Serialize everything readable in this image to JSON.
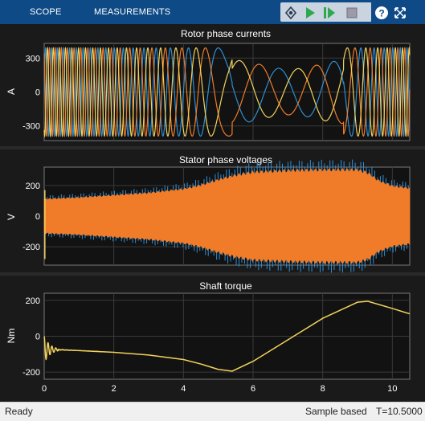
{
  "toolstrip": {
    "tabs": [
      {
        "label": "SCOPE"
      },
      {
        "label": "MEASUREMENTS"
      }
    ],
    "icons": [
      "highlight-simulink-block-icon",
      "run-icon",
      "step-forward-icon",
      "stop-icon",
      "help-icon",
      "expand-icon"
    ]
  },
  "colors": {
    "toolstrip_bg": "#0e4a86",
    "axes_bg": "#121212",
    "trace_blue": "#2e8fd6",
    "trace_orange": "#f07c2a",
    "trace_yellow": "#f2d35c"
  },
  "chart_data": [
    {
      "type": "line",
      "title": "Rotor phase currents",
      "ylabel": "A",
      "ylim": [
        -430,
        430
      ],
      "xlim": [
        0,
        10.5
      ],
      "yticks": [
        300,
        0,
        -300
      ],
      "ytick_labels": [
        "300",
        "0",
        "-300"
      ],
      "amplitude": 390,
      "grid": true,
      "series": [
        {
          "color": "blue"
        },
        {
          "color": "orange"
        },
        {
          "color": "yellow"
        }
      ]
    },
    {
      "type": "area",
      "title": "Stator phase voltages",
      "ylabel": "V",
      "ylim": [
        -320,
        320
      ],
      "xlim": [
        0,
        10.5
      ],
      "yticks": [
        200,
        0,
        -200
      ],
      "ytick_labels": [
        "200",
        "0",
        "-200"
      ],
      "envelope_x": [
        0,
        0.5,
        1,
        2,
        3,
        4,
        4.5,
        5,
        5.5,
        6,
        7,
        8,
        9,
        9.3,
        9.6,
        10,
        10.5
      ],
      "envelope_y": [
        110,
        115,
        120,
        135,
        150,
        175,
        200,
        235,
        265,
        285,
        295,
        300,
        300,
        280,
        230,
        195,
        180
      ],
      "grid": true,
      "series": [
        {
          "color": "blue"
        },
        {
          "color": "orange"
        },
        {
          "color": "yellow"
        }
      ]
    },
    {
      "type": "line",
      "title": "Shaft torque",
      "ylabel": "Nm",
      "ylim": [
        -240,
        240
      ],
      "xlim": [
        0,
        10.5
      ],
      "yticks": [
        200,
        0,
        -200
      ],
      "ytick_labels": [
        "200",
        "0",
        "-200"
      ],
      "xticks": [
        0,
        2,
        4,
        6,
        8,
        10
      ],
      "xtick_labels": [
        "0",
        "2",
        "4",
        "6",
        "8",
        "10"
      ],
      "grid": true,
      "series": [
        {
          "color": "yellow",
          "x": [
            0.4,
            1,
            2,
            3,
            4,
            4.5,
            5,
            5.4,
            6,
            7,
            8,
            9,
            9.3,
            10,
            10.5
          ],
          "y": [
            -75,
            -80,
            -90,
            -105,
            -130,
            -155,
            -185,
            -195,
            -140,
            -20,
            100,
            190,
            195,
            155,
            125
          ]
        }
      ]
    }
  ],
  "status": {
    "left": "Ready",
    "mode": "Sample based",
    "time": "T=10.5000"
  }
}
